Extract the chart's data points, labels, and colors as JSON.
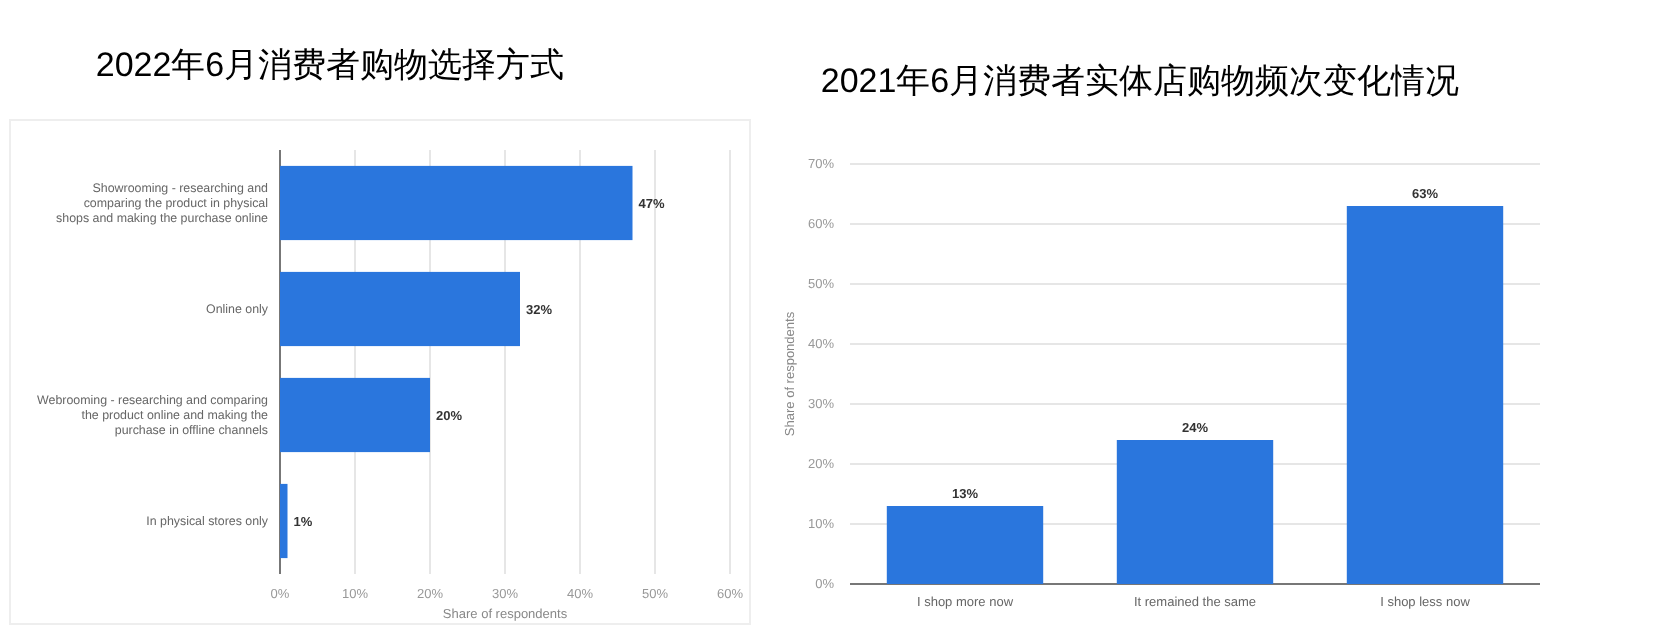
{
  "chart_data": [
    {
      "type": "bar",
      "orientation": "horizontal",
      "title": "2022年6月消费者购物选择方式",
      "xlabel": "Share of respondents",
      "categories": [
        "Showrooming - researching and comparing the product in physical shops and making the purchase online",
        "Online only",
        "Webrooming - researching and comparing the product online and making the purchase in offline channels",
        "In physical stores only"
      ],
      "values": [
        47,
        32,
        20,
        1
      ],
      "color": "#2a76dd",
      "value_labels": [
        "47%",
        "32%",
        "20%",
        "1%"
      ],
      "xlim": [
        0,
        60
      ],
      "xticks": [
        {
          "value": 0,
          "label": "0%"
        },
        {
          "value": 10,
          "label": "10%"
        },
        {
          "value": 20,
          "label": "20%"
        },
        {
          "value": 30,
          "label": "30%"
        },
        {
          "value": 40,
          "label": "40%"
        },
        {
          "value": 50,
          "label": "50%"
        },
        {
          "value": 60,
          "label": "60%"
        }
      ],
      "grid": "x"
    },
    {
      "type": "bar",
      "title": "2021年6月消费者实体店购物频次变化情况",
      "ylabel": "Share of respondents",
      "categories": [
        "I shop more now",
        "It remained the same",
        "I shop less now"
      ],
      "values": [
        13,
        24,
        63
      ],
      "color": "#2a76dd",
      "value_labels": [
        "13%",
        "24%",
        "63%"
      ],
      "ylim": [
        0,
        70
      ],
      "yticks": [
        {
          "value": 0,
          "label": "0%"
        },
        {
          "value": 10,
          "label": "10%"
        },
        {
          "value": 20,
          "label": "20%"
        },
        {
          "value": 30,
          "label": "30%"
        },
        {
          "value": 40,
          "label": "40%"
        },
        {
          "value": 50,
          "label": "50%"
        },
        {
          "value": 60,
          "label": "60%"
        },
        {
          "value": 70,
          "label": "70%"
        }
      ],
      "grid": "y"
    }
  ]
}
